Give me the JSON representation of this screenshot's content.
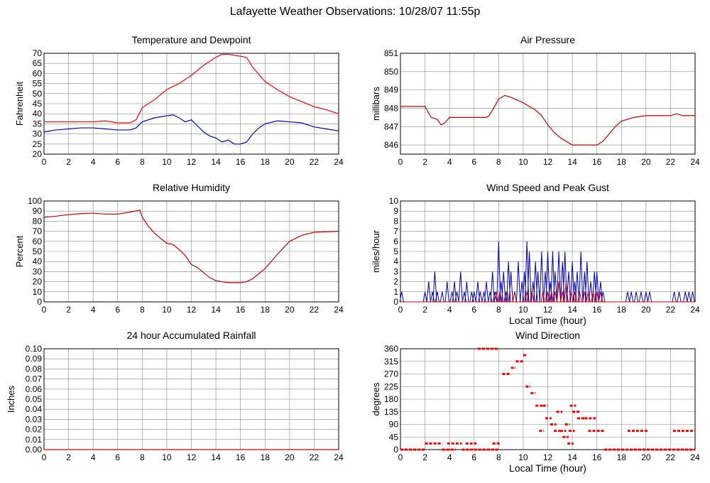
{
  "page_title": "Lafayette Weather Observations: 10/28/07 11:55p",
  "chart_data": [
    {
      "id": "temperature",
      "type": "line",
      "title": "Temperature and Dewpoint",
      "xlabel": "",
      "ylabel": "Fahrenheit",
      "xlim": [
        0,
        24
      ],
      "ylim": [
        20,
        70
      ],
      "xticks": [
        0,
        2,
        4,
        6,
        8,
        10,
        12,
        14,
        16,
        18,
        20,
        22,
        24
      ],
      "yticks": [
        20,
        25,
        30,
        35,
        40,
        45,
        50,
        55,
        60,
        65,
        70
      ],
      "grid": true,
      "series": [
        {
          "color": "#ff0000",
          "x": [
            0,
            2,
            4,
            5,
            6,
            7,
            7.5,
            8,
            9,
            10,
            11,
            12,
            13,
            14,
            14.5,
            15,
            16,
            16.5,
            17,
            18,
            19,
            20,
            21,
            22,
            23,
            24
          ],
          "y": [
            36,
            36,
            36,
            36.5,
            35.5,
            35.5,
            37,
            43,
            47,
            52,
            55,
            59,
            64,
            68,
            69.5,
            69.5,
            68.5,
            68,
            63,
            56,
            52,
            48.5,
            46,
            43.5,
            42,
            40
          ]
        },
        {
          "color": "#0000cc",
          "x": [
            0,
            1,
            2,
            3,
            4,
            5,
            6,
            7,
            7.5,
            8,
            9,
            10,
            10.5,
            11,
            11.5,
            12,
            12.5,
            13,
            13.5,
            14,
            14.5,
            15,
            15.5,
            16,
            16.5,
            17,
            17.5,
            18,
            19,
            20,
            21,
            22,
            23,
            24
          ],
          "y": [
            31,
            32,
            32.5,
            33,
            33,
            32.5,
            32,
            32,
            33,
            36,
            38,
            39,
            39.5,
            38,
            36,
            37,
            34,
            31,
            29,
            28,
            26,
            27,
            25,
            25,
            26,
            30,
            33,
            35,
            36.5,
            36,
            35.5,
            33.5,
            32.5,
            31.5
          ]
        }
      ]
    },
    {
      "id": "pressure",
      "type": "line",
      "title": "Air Pressure",
      "xlabel": "",
      "ylabel": "millibars",
      "xlim": [
        0,
        24
      ],
      "ylim": [
        845.5,
        851
      ],
      "xticks": [
        0,
        2,
        4,
        6,
        8,
        10,
        12,
        14,
        16,
        18,
        20,
        22,
        24
      ],
      "yticks": [
        846,
        847,
        848,
        849,
        850,
        851
      ],
      "grid": true,
      "series": [
        {
          "color": "#cc0000",
          "x": [
            0,
            2,
            2.5,
            3,
            3.3,
            3.6,
            4,
            5,
            6,
            7,
            7.2,
            7.5,
            8,
            8.5,
            9,
            10,
            10.5,
            11,
            11.5,
            12,
            12.5,
            13,
            13.5,
            14,
            15,
            16,
            16.5,
            17,
            17.5,
            18,
            19,
            20,
            21,
            22,
            22.5,
            23,
            24
          ],
          "y": [
            848.1,
            848.1,
            847.5,
            847.4,
            847.1,
            847.2,
            847.5,
            847.5,
            847.5,
            847.5,
            847.6,
            847.9,
            848.5,
            848.7,
            848.6,
            848.3,
            848.1,
            847.9,
            847.6,
            847.1,
            846.7,
            846.4,
            846.2,
            846,
            846,
            846,
            846.2,
            846.6,
            847,
            847.3,
            847.5,
            847.6,
            847.6,
            847.6,
            847.7,
            847.6,
            847.6
          ]
        }
      ]
    },
    {
      "id": "humidity",
      "type": "line",
      "title": "Relative Humidity",
      "xlabel": "",
      "ylabel": "Percent",
      "xlim": [
        0,
        24
      ],
      "ylim": [
        0,
        100
      ],
      "xticks": [
        0,
        2,
        4,
        6,
        8,
        10,
        12,
        14,
        16,
        18,
        20,
        22,
        24
      ],
      "yticks": [
        0,
        10,
        20,
        30,
        40,
        50,
        60,
        70,
        80,
        90,
        100
      ],
      "grid": true,
      "series": [
        {
          "color": "#cc0000",
          "x": [
            0,
            1,
            2,
            3,
            4,
            5,
            6,
            7,
            7.8,
            8,
            8.5,
            9,
            9.5,
            10,
            10.5,
            11,
            11.5,
            12,
            12.5,
            13,
            13.5,
            14,
            15,
            16,
            16.5,
            17,
            18,
            19,
            20,
            21,
            22,
            23,
            24
          ],
          "y": [
            84,
            85,
            86.5,
            87.5,
            88,
            87,
            87,
            89,
            91,
            84,
            75,
            68,
            63,
            58,
            57,
            52,
            46,
            37,
            34,
            29,
            24,
            21,
            19,
            19,
            20,
            23,
            33,
            47,
            60,
            66,
            69,
            69.5,
            70
          ]
        }
      ]
    },
    {
      "id": "wind_speed",
      "type": "bar",
      "title": "Wind Speed and Peak Gust",
      "xlabel": "Local Time (hour)",
      "ylabel": "miles/hour",
      "xlim": [
        0,
        24
      ],
      "ylim": [
        0,
        10
      ],
      "xticks": [
        0,
        2,
        4,
        6,
        8,
        10,
        12,
        14,
        16,
        18,
        20,
        22,
        24
      ],
      "yticks": [
        0,
        1,
        2,
        3,
        4,
        5,
        6,
        7,
        8,
        9,
        10
      ],
      "grid": true,
      "series": [
        {
          "color": "#0000cc",
          "type": "spikes",
          "x": [
            0.1,
            2,
            2.3,
            2.6,
            2.8,
            3,
            3.4,
            3.8,
            4.2,
            4.4,
            4.6,
            4.9,
            5.2,
            5.4,
            5.8,
            6,
            6.3,
            6.5,
            6.8,
            7,
            7.3,
            7.5,
            7.7,
            8,
            8.2,
            8.4,
            8.6,
            8.8,
            9,
            9.3,
            9.6,
            9.9,
            10.1,
            10.3,
            10.5,
            10.8,
            11,
            11.2,
            11.5,
            11.8,
            12,
            12.2,
            12.4,
            12.6,
            12.9,
            13.2,
            13.4,
            13.7,
            14,
            14.2,
            14.4,
            14.7,
            15,
            15.2,
            15.5,
            15.8,
            16,
            16.3,
            16.5,
            18.5,
            18.8,
            19.2,
            19.6,
            20,
            20.3,
            22.3,
            22.7,
            23.2,
            23.5,
            23.8
          ],
          "y": [
            1,
            1,
            2,
            1,
            3,
            1,
            1,
            2,
            1,
            2,
            1,
            3,
            1,
            2,
            1,
            1,
            2,
            1,
            1,
            2,
            1,
            3,
            1,
            6,
            2,
            3,
            1,
            4,
            3,
            1,
            4,
            2,
            3,
            6,
            5,
            2,
            4,
            3,
            5,
            3,
            5,
            2,
            5,
            3,
            5,
            4,
            5,
            3,
            4,
            2,
            3,
            5,
            3,
            4,
            2,
            3,
            3,
            2,
            1,
            1,
            1,
            1,
            1,
            1,
            1,
            1,
            1,
            1,
            1,
            1
          ]
        },
        {
          "color": "#cc0000",
          "type": "spikes",
          "x": [
            7.8,
            8.1,
            8.7,
            9.3,
            10.3,
            10.7,
            11.6,
            12,
            12.3,
            12.6,
            12.9,
            13.2,
            13.5,
            13.9,
            14.2,
            14.6,
            15,
            15.3,
            15.7,
            16,
            16.3
          ],
          "y": [
            1,
            1,
            1,
            1,
            1,
            1,
            1,
            1,
            1,
            1,
            2,
            1,
            2,
            1,
            1,
            1,
            1,
            1,
            1,
            1,
            1
          ]
        }
      ]
    },
    {
      "id": "rainfall",
      "type": "line",
      "title": "24 hour Accumulated Rainfall",
      "xlabel": "",
      "ylabel": "Inches",
      "xlim": [
        0,
        24
      ],
      "ylim": [
        0,
        0.1
      ],
      "xticks": [
        0,
        2,
        4,
        6,
        8,
        10,
        12,
        14,
        16,
        18,
        20,
        22,
        24
      ],
      "yticks": [
        "0.00",
        "0.01",
        "0.02",
        "0.03",
        "0.04",
        "0.05",
        "0.06",
        "0.07",
        "0.08",
        "0.09",
        "0.10"
      ],
      "grid": true,
      "series": [
        {
          "color": "#cc0000",
          "x": [
            0,
            24
          ],
          "y": [
            0,
            0
          ]
        }
      ]
    },
    {
      "id": "wind_direction",
      "type": "scatter",
      "title": "Wind Direction",
      "xlabel": "Local Time (hour)",
      "ylabel": "degrees",
      "xlim": [
        0,
        24
      ],
      "ylim": [
        0,
        360
      ],
      "xticks": [
        0,
        2,
        4,
        6,
        8,
        10,
        12,
        14,
        16,
        18,
        20,
        22,
        24
      ],
      "yticks": [
        0,
        45,
        90,
        135,
        180,
        225,
        270,
        315,
        360
      ],
      "grid": true,
      "series": [
        {
          "color": "#ff0000",
          "type": "dashes",
          "segments": [
            [
              0,
              2,
              0
            ],
            [
              2,
              3.4,
              22
            ],
            [
              3.4,
              4.5,
              0
            ],
            [
              3.8,
              4.4,
              22
            ],
            [
              4.5,
              5,
              22
            ],
            [
              5,
              6,
              0
            ],
            [
              5.3,
              6.2,
              22
            ],
            [
              6,
              8,
              0
            ],
            [
              6.3,
              8,
              360
            ],
            [
              7.5,
              8.2,
              22
            ],
            [
              8.3,
              9,
              270
            ],
            [
              9,
              9.4,
              292
            ],
            [
              9.4,
              10,
              315
            ],
            [
              10,
              10.3,
              337
            ],
            [
              10.2,
              10.6,
              225
            ],
            [
              10.6,
              11,
              202
            ],
            [
              11,
              11.6,
              157
            ],
            [
              11.6,
              12,
              157
            ],
            [
              11.3,
              11.7,
              67
            ],
            [
              11.8,
              12.3,
              112
            ],
            [
              12.2,
              12.7,
              90
            ],
            [
              12.5,
              13,
              67
            ],
            [
              12.7,
              13.2,
              135
            ],
            [
              13,
              13.5,
              67
            ],
            [
              13.2,
              13.7,
              45
            ],
            [
              13.4,
              13.8,
              90
            ],
            [
              13.7,
              14.2,
              67
            ],
            [
              13.6,
              14.1,
              22
            ],
            [
              13.8,
              14.3,
              157
            ],
            [
              14,
              14.6,
              135
            ],
            [
              14.4,
              15.2,
              112
            ],
            [
              15,
              16,
              112
            ],
            [
              15.3,
              16.6,
              67
            ],
            [
              16.6,
              24,
              0
            ],
            [
              18.5,
              20.2,
              67
            ],
            [
              22.2,
              24,
              67
            ]
          ]
        }
      ]
    }
  ]
}
